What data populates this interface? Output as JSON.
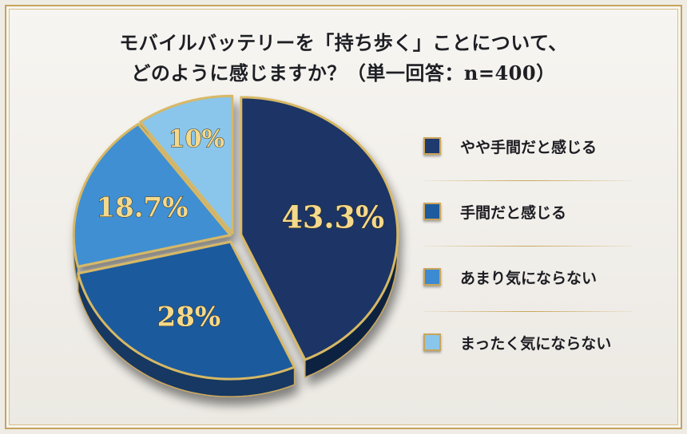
{
  "title": {
    "line1": "モバイルバッテリーを「持ち歩く」ことについて、",
    "line2": "どのように感じますか？（単一回答：n=400）"
  },
  "chart_data": {
    "type": "pie",
    "categories": [
      "やや手間だと感じる",
      "手間だと感じる",
      "あまり気にならない",
      "まったく気にならない"
    ],
    "values": [
      43.3,
      28,
      18.7,
      10
    ],
    "data_labels": [
      "43.3%",
      "28%",
      "18.7%",
      "10%"
    ],
    "colors": [
      "#1c3566",
      "#1d5a9e",
      "#3f8fd3",
      "#8ac6ec"
    ],
    "legend_swatch_colors": [
      "#1f3a6e",
      "#1d5a9e",
      "#3b8ad2",
      "#8ac6ec"
    ],
    "legend_position": "right"
  }
}
